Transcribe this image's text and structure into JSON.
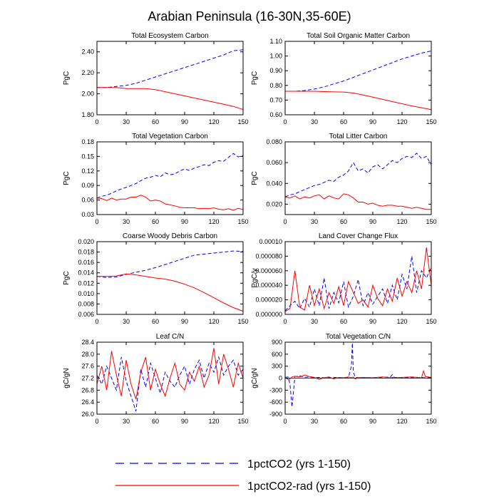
{
  "figure": {
    "title": "Arabian Peninsula (16-30N,35-60E)"
  },
  "legend": {
    "placement": "bottom",
    "items": [
      {
        "name": "1pctCO2 (yrs 1-150)",
        "color": "#0000ff",
        "dash": "dashed"
      },
      {
        "name": "1pctCO2-rad (yrs 1-150)",
        "color": "#ff0000",
        "dash": "solid"
      }
    ]
  },
  "chart_data": [
    {
      "type": "line",
      "title": "Total Ecosystem Carbon",
      "xlabel": "",
      "ylabel": "PgC",
      "xlim": [
        0,
        150
      ],
      "ylim": [
        1.8,
        2.5
      ],
      "xticks": [
        0,
        30,
        60,
        90,
        120,
        150
      ],
      "xticklabels": [
        "0",
        "30",
        "60",
        "90",
        "120",
        "150"
      ],
      "yticks": [
        1.8,
        2.0,
        2.2,
        2.4
      ],
      "yticklabels": [
        "1.80",
        "2.00",
        "2.20",
        "2.40"
      ],
      "x": [
        0,
        10,
        20,
        30,
        40,
        50,
        60,
        70,
        80,
        90,
        100,
        110,
        120,
        130,
        140,
        150
      ],
      "series": [
        {
          "name": "1pctCO2 (yrs 1-150)",
          "values": [
            2.06,
            2.06,
            2.07,
            2.08,
            2.1,
            2.13,
            2.16,
            2.19,
            2.22,
            2.25,
            2.28,
            2.31,
            2.34,
            2.37,
            2.41,
            2.42
          ]
        },
        {
          "name": "1pctCO2-rad (yrs 1-150)",
          "values": [
            2.06,
            2.06,
            2.06,
            2.05,
            2.05,
            2.05,
            2.04,
            2.02,
            2.0,
            1.98,
            1.96,
            1.94,
            1.92,
            1.9,
            1.88,
            1.85
          ]
        }
      ]
    },
    {
      "type": "line",
      "title": "Total Soil Organic Matter Carbon",
      "xlabel": "",
      "ylabel": "PgC",
      "xlim": [
        0,
        150
      ],
      "ylim": [
        0.6,
        1.1
      ],
      "xticks": [
        0,
        30,
        60,
        90,
        120,
        150
      ],
      "xticklabels": [
        "0",
        "30",
        "60",
        "90",
        "120",
        "150"
      ],
      "yticks": [
        0.6,
        0.7,
        0.8,
        0.9,
        1.0,
        1.1
      ],
      "yticklabels": [
        "0.60",
        "0.70",
        "0.80",
        "0.90",
        "1.00",
        "1.10"
      ],
      "x": [
        0,
        10,
        20,
        30,
        40,
        50,
        60,
        70,
        80,
        90,
        100,
        110,
        120,
        130,
        140,
        150
      ],
      "series": [
        {
          "name": "1pctCO2 (yrs 1-150)",
          "values": [
            0.76,
            0.76,
            0.765,
            0.775,
            0.79,
            0.81,
            0.83,
            0.855,
            0.88,
            0.905,
            0.93,
            0.955,
            0.98,
            1.0,
            1.02,
            1.035
          ]
        },
        {
          "name": "1pctCO2-rad (yrs 1-150)",
          "values": [
            0.76,
            0.76,
            0.76,
            0.76,
            0.758,
            0.756,
            0.755,
            0.748,
            0.735,
            0.72,
            0.705,
            0.69,
            0.675,
            0.66,
            0.648,
            0.635
          ]
        }
      ]
    },
    {
      "type": "line",
      "title": "Total Vegetation Carbon",
      "xlabel": "",
      "ylabel": "PgC",
      "xlim": [
        0,
        150
      ],
      "ylim": [
        0.03,
        0.18
      ],
      "xticks": [
        0,
        30,
        60,
        90,
        120,
        150
      ],
      "xticklabels": [
        "0",
        "30",
        "60",
        "90",
        "120",
        "150"
      ],
      "yticks": [
        0.03,
        0.06,
        0.09,
        0.12,
        0.15,
        0.18
      ],
      "yticklabels": [
        "0.03",
        "0.06",
        "0.09",
        "0.12",
        "0.15",
        "0.18"
      ],
      "x": [
        0,
        5,
        10,
        15,
        20,
        25,
        30,
        35,
        40,
        45,
        50,
        55,
        60,
        65,
        70,
        75,
        80,
        85,
        90,
        95,
        100,
        105,
        110,
        115,
        120,
        125,
        130,
        135,
        140,
        145,
        150
      ],
      "series": [
        {
          "name": "1pctCO2 (yrs 1-150)",
          "values": [
            0.064,
            0.068,
            0.07,
            0.074,
            0.079,
            0.083,
            0.086,
            0.09,
            0.094,
            0.1,
            0.105,
            0.107,
            0.111,
            0.108,
            0.116,
            0.112,
            0.114,
            0.12,
            0.124,
            0.121,
            0.126,
            0.129,
            0.133,
            0.131,
            0.138,
            0.141,
            0.14,
            0.148,
            0.156,
            0.149,
            0.152
          ]
        },
        {
          "name": "1pctCO2-rad (yrs 1-150)",
          "values": [
            0.064,
            0.063,
            0.059,
            0.064,
            0.06,
            0.062,
            0.062,
            0.066,
            0.066,
            0.07,
            0.066,
            0.058,
            0.06,
            0.058,
            0.052,
            0.05,
            0.048,
            0.045,
            0.044,
            0.044,
            0.044,
            0.042,
            0.043,
            0.042,
            0.044,
            0.041,
            0.04,
            0.042,
            0.039,
            0.043,
            0.04
          ]
        }
      ]
    },
    {
      "type": "line",
      "title": "Total Litter Carbon",
      "xlabel": "",
      "ylabel": "PgC",
      "xlim": [
        0,
        150
      ],
      "ylim": [
        0.01,
        0.08
      ],
      "xticks": [
        0,
        30,
        60,
        90,
        120,
        150
      ],
      "xticklabels": [
        "0",
        "30",
        "60",
        "90",
        "120",
        "150"
      ],
      "yticks": [
        0.02,
        0.04,
        0.06,
        0.08
      ],
      "yticklabels": [
        "0.020",
        "0.040",
        "0.060",
        "0.080"
      ],
      "x": [
        0,
        5,
        10,
        15,
        20,
        25,
        30,
        35,
        40,
        45,
        50,
        55,
        60,
        65,
        70,
        75,
        80,
        85,
        90,
        95,
        100,
        105,
        110,
        115,
        120,
        125,
        130,
        135,
        140,
        145,
        150
      ],
      "series": [
        {
          "name": "1pctCO2 (yrs 1-150)",
          "values": [
            0.027,
            0.029,
            0.03,
            0.032,
            0.034,
            0.036,
            0.038,
            0.039,
            0.041,
            0.043,
            0.042,
            0.046,
            0.048,
            0.052,
            0.06,
            0.052,
            0.054,
            0.05,
            0.056,
            0.058,
            0.054,
            0.058,
            0.062,
            0.06,
            0.064,
            0.066,
            0.065,
            0.069,
            0.064,
            0.066,
            0.058
          ]
        },
        {
          "name": "1pctCO2-rad (yrs 1-150)",
          "values": [
            0.027,
            0.026,
            0.028,
            0.025,
            0.027,
            0.026,
            0.028,
            0.029,
            0.025,
            0.028,
            0.026,
            0.025,
            0.03,
            0.029,
            0.026,
            0.022,
            0.022,
            0.02,
            0.021,
            0.019,
            0.018,
            0.019,
            0.019,
            0.018,
            0.018,
            0.017,
            0.016,
            0.017,
            0.016,
            0.015,
            0.015
          ]
        }
      ]
    },
    {
      "type": "line",
      "title": "Coarse Woody Debris Carbon",
      "xlabel": "",
      "ylabel": "PgC",
      "xlim": [
        0,
        150
      ],
      "ylim": [
        0.006,
        0.02
      ],
      "xticks": [
        0,
        30,
        60,
        90,
        120,
        150
      ],
      "xticklabels": [
        "0",
        "30",
        "60",
        "90",
        "120",
        "150"
      ],
      "yticks": [
        0.006,
        0.008,
        0.01,
        0.012,
        0.014,
        0.016,
        0.018,
        0.02
      ],
      "yticklabels": [
        "0.006",
        "0.008",
        "0.010",
        "0.012",
        "0.014",
        "0.016",
        "0.018",
        "0.020"
      ],
      "x": [
        0,
        10,
        20,
        30,
        40,
        50,
        60,
        70,
        80,
        90,
        100,
        110,
        120,
        130,
        140,
        150
      ],
      "series": [
        {
          "name": "1pctCO2 (yrs 1-150)",
          "values": [
            0.0133,
            0.0131,
            0.0132,
            0.0137,
            0.0141,
            0.0145,
            0.015,
            0.0156,
            0.0162,
            0.0168,
            0.0174,
            0.0176,
            0.0178,
            0.018,
            0.0182,
            0.0181
          ]
        },
        {
          "name": "1pctCO2-rad (yrs 1-150)",
          "values": [
            0.0133,
            0.0133,
            0.0134,
            0.0138,
            0.0136,
            0.0133,
            0.013,
            0.0128,
            0.0124,
            0.0118,
            0.0111,
            0.0102,
            0.0092,
            0.0082,
            0.0073,
            0.0066
          ]
        }
      ]
    },
    {
      "type": "line",
      "title": "Land Cover Change Flux",
      "xlabel": "",
      "ylabel": "PgC/y",
      "xlim": [
        0,
        150
      ],
      "ylim": [
        0,
        0.0001
      ],
      "xticks": [
        0,
        30,
        60,
        90,
        120,
        150
      ],
      "xticklabels": [
        "0",
        "30",
        "60",
        "90",
        "120",
        "150"
      ],
      "yticks": [
        0,
        2e-05,
        4e-05,
        6e-05,
        8e-05,
        0.0001
      ],
      "yticklabels": [
        "0.000000",
        "0.000020",
        "0.000040",
        "0.000060",
        "0.000080",
        "0.00010"
      ],
      "x": [
        0,
        5,
        10,
        15,
        20,
        25,
        30,
        35,
        40,
        45,
        50,
        55,
        60,
        65,
        70,
        75,
        80,
        85,
        90,
        95,
        100,
        105,
        110,
        115,
        120,
        125,
        130,
        135,
        140,
        145,
        150
      ],
      "series": [
        {
          "name": "1pctCO2 (yrs 1-150)",
          "values": [
            5e-06,
            1.2e-05,
            1.8e-05,
            8e-06,
            2.2e-05,
            1e-05,
            3.5e-05,
            1.2e-05,
            5e-05,
            8e-06,
            3e-05,
            1.6e-05,
            4.5e-05,
            1e-05,
            2.5e-05,
            4.8e-05,
            1.2e-05,
            3e-05,
            1.4e-05,
            2.5e-05,
            3.5e-05,
            1.5e-05,
            4e-05,
            2e-05,
            5.5e-05,
            3.5e-05,
            8e-05,
            3e-05,
            6e-05,
            5e-05,
            6.5e-05
          ]
        },
        {
          "name": "1pctCO2-rad (yrs 1-150)",
          "values": [
            4e-06,
            8e-06,
            6e-05,
            1e-05,
            6e-06,
            4e-05,
            1.2e-05,
            3.5e-05,
            8e-06,
            3e-05,
            1.5e-05,
            3.8e-05,
            1.2e-05,
            4.5e-05,
            3e-05,
            1.5e-05,
            2e-05,
            1e-05,
            4e-05,
            2.2e-05,
            1.2e-05,
            3.5e-05,
            1.8e-05,
            5e-05,
            2.5e-05,
            4.5e-05,
            3e-05,
            6e-05,
            3.5e-05,
            9.2e-05,
            4e-05
          ]
        }
      ]
    },
    {
      "type": "line",
      "title": "Leaf C/N",
      "xlabel": "",
      "ylabel": "gC/gN",
      "xlim": [
        0,
        150
      ],
      "ylim": [
        26.0,
        28.4
      ],
      "xticks": [
        0,
        30,
        60,
        90,
        120,
        150
      ],
      "xticklabels": [
        "0",
        "30",
        "60",
        "90",
        "120",
        "150"
      ],
      "yticks": [
        26.0,
        26.4,
        26.8,
        27.2,
        27.6,
        28.0,
        28.4
      ],
      "yticklabels": [
        "26.0",
        "26.4",
        "26.8",
        "27.2",
        "27.6",
        "28.0",
        "28.4"
      ],
      "x": [
        0,
        5,
        10,
        15,
        20,
        25,
        30,
        35,
        40,
        45,
        50,
        55,
        60,
        65,
        70,
        75,
        80,
        85,
        90,
        95,
        100,
        105,
        110,
        115,
        120,
        125,
        130,
        135,
        140,
        145,
        150
      ],
      "series": [
        {
          "name": "1pctCO2 (yrs 1-150)",
          "values": [
            27.3,
            27.0,
            27.6,
            27.2,
            26.8,
            27.9,
            27.1,
            26.6,
            26.1,
            27.5,
            26.9,
            27.7,
            27.2,
            26.7,
            27.4,
            27.1,
            26.9,
            27.3,
            27.6,
            27.0,
            27.5,
            27.8,
            27.2,
            27.7,
            27.4,
            27.9,
            27.3,
            27.6,
            27.8,
            27.3,
            27.5
          ]
        },
        {
          "name": "1pctCO2-rad (yrs 1-150)",
          "values": [
            27.0,
            27.6,
            26.8,
            28.1,
            27.3,
            26.6,
            27.8,
            27.0,
            26.5,
            27.4,
            27.9,
            26.8,
            27.5,
            27.0,
            26.6,
            27.2,
            27.7,
            27.0,
            26.8,
            27.4,
            27.1,
            27.6,
            26.9,
            27.3,
            28.2,
            27.0,
            28.0,
            27.5,
            26.9,
            27.7,
            27.2
          ]
        }
      ]
    },
    {
      "type": "line",
      "title": "Total Vegetation C/N",
      "xlabel": "",
      "ylabel": "gC/gN",
      "xlim": [
        0,
        150
      ],
      "ylim": [
        -900,
        900
      ],
      "xticks": [
        0,
        30,
        60,
        90,
        120,
        150
      ],
      "xticklabels": [
        "0",
        "30",
        "60",
        "90",
        "120",
        "150"
      ],
      "yticks": [
        -900,
        -600,
        -300,
        0,
        300,
        600,
        900
      ],
      "yticklabels": [
        "-900",
        "-600",
        "-300",
        "0",
        "300",
        "600",
        "900"
      ],
      "x": [
        0,
        3,
        5,
        7,
        10,
        15,
        20,
        25,
        30,
        35,
        40,
        45,
        50,
        55,
        60,
        65,
        68,
        69,
        70,
        72,
        75,
        80,
        90,
        100,
        108,
        110,
        112,
        120,
        130,
        140,
        142,
        144,
        150
      ],
      "series": [
        {
          "name": "1pctCO2 (yrs 1-150)",
          "values": [
            20,
            30,
            -150,
            -720,
            40,
            60,
            20,
            30,
            10,
            20,
            10,
            15,
            20,
            10,
            15,
            20,
            300,
            880,
            150,
            20,
            15,
            10,
            15,
            20,
            30,
            90,
            20,
            15,
            10,
            20,
            15,
            10,
            20
          ]
        },
        {
          "name": "1pctCO2-rad (yrs 1-150)",
          "values": [
            10,
            -30,
            -20,
            30,
            50,
            30,
            80,
            40,
            20,
            -30,
            10,
            30,
            -20,
            20,
            10,
            30,
            10,
            20,
            30,
            -20,
            10,
            20,
            10,
            30,
            10,
            20,
            10,
            20,
            30,
            10,
            180,
            40,
            20
          ]
        }
      ]
    }
  ]
}
